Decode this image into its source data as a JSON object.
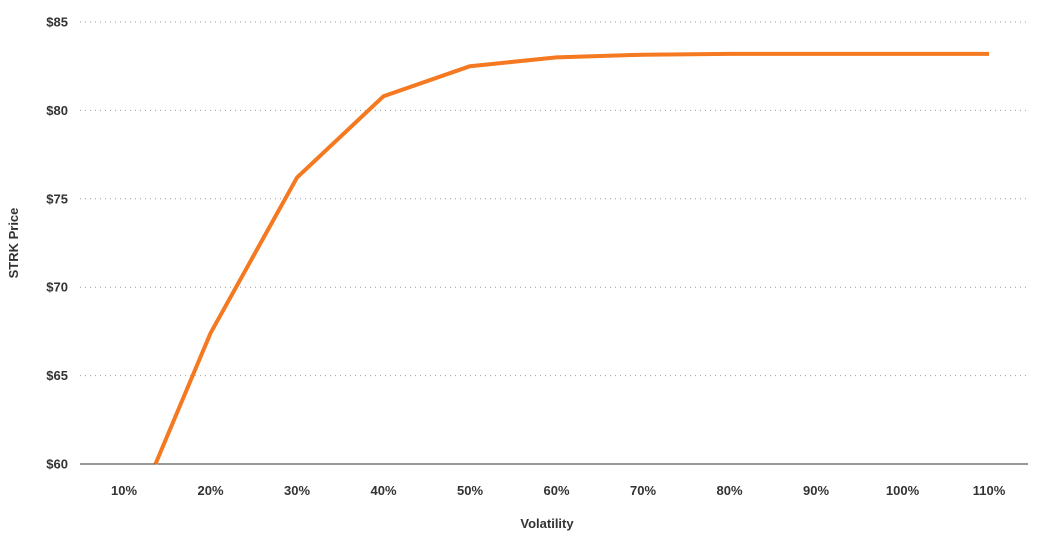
{
  "chart_data": {
    "type": "line",
    "title": "",
    "xlabel": "Volatility",
    "ylabel": "STRK Price",
    "categories": [
      "10%",
      "20%",
      "30%",
      "40%",
      "50%",
      "60%",
      "70%",
      "80%",
      "90%",
      "100%",
      "110%"
    ],
    "x": [
      0.1,
      0.2,
      0.3,
      0.4,
      0.5,
      0.6,
      0.7,
      0.8,
      0.9,
      1.0,
      1.1
    ],
    "y_tick_labels": [
      "$60",
      "$65",
      "$70",
      "$75",
      "$80",
      "$85"
    ],
    "y_ticks": [
      60,
      65,
      70,
      75,
      80,
      85
    ],
    "ylim": [
      60,
      85
    ],
    "grid": true,
    "legend": "none",
    "series": [
      {
        "name": "",
        "color": "#f47920",
        "points": [
          [
            0.1364,
            60.0
          ],
          [
            0.2,
            67.4
          ],
          [
            0.3,
            76.2
          ],
          [
            0.4,
            80.8
          ],
          [
            0.5,
            82.5
          ],
          [
            0.6,
            83.0
          ],
          [
            0.7,
            83.15
          ],
          [
            0.8,
            83.2
          ],
          [
            0.9,
            83.2
          ],
          [
            1.0,
            83.2
          ],
          [
            1.1,
            83.2
          ]
        ]
      }
    ]
  }
}
